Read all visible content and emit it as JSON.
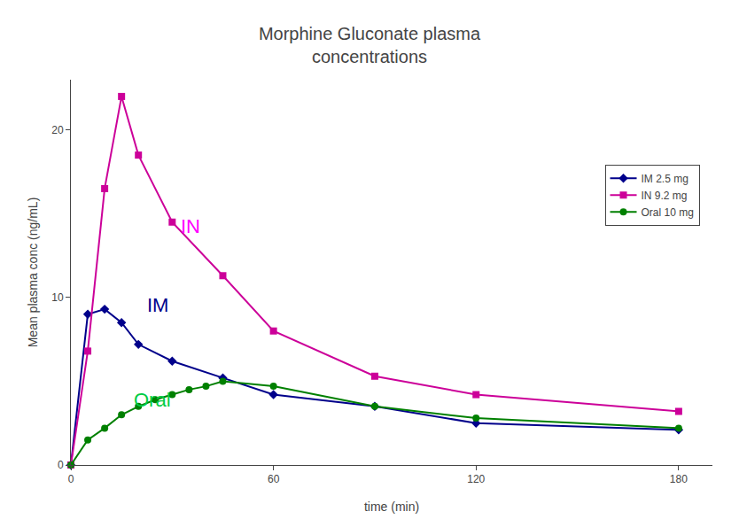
{
  "chart_data": {
    "type": "line",
    "title": "Morphine Gluconate plasma\nconcentrations",
    "x_label": "time (min)",
    "y_label": "Mean plasma conc (ng/mL)",
    "xlim": [
      0,
      190
    ],
    "ylim": [
      0,
      23
    ],
    "xticks": [
      0,
      60,
      120,
      180
    ],
    "yticks": [
      0,
      10,
      20
    ],
    "grid": false,
    "legend": "upper right",
    "series": [
      {
        "name": "IM 2.5 mg",
        "color": "#00008B",
        "marker": "diamond",
        "x": [
          0,
          5,
          10,
          15,
          20,
          30,
          45,
          60,
          90,
          120,
          180
        ],
        "values": [
          0,
          9.0,
          9.3,
          8.5,
          7.2,
          6.2,
          5.2,
          4.2,
          3.5,
          2.5,
          2.1
        ]
      },
      {
        "name": "IN 9.2 mg",
        "color": "#cc0099",
        "marker": "square",
        "x": [
          0,
          5,
          10,
          15,
          20,
          30,
          45,
          60,
          90,
          120,
          180
        ],
        "values": [
          0,
          6.8,
          16.5,
          22.0,
          18.5,
          14.5,
          11.3,
          8.0,
          5.3,
          4.2,
          3.2
        ]
      },
      {
        "name": "Oral 10 mg",
        "color": "#008000",
        "marker": "circle",
        "x": [
          0,
          5,
          10,
          15,
          20,
          25,
          30,
          35,
          40,
          45,
          60,
          90,
          120,
          180
        ],
        "values": [
          0,
          1.5,
          2.2,
          3.0,
          3.5,
          3.9,
          4.2,
          4.5,
          4.7,
          5.0,
          4.7,
          3.5,
          2.8,
          2.2
        ]
      }
    ],
    "annotations": [
      {
        "text": "IN",
        "x": 32,
        "y": 13.5,
        "color": "#ff00ff"
      },
      {
        "text": "IM",
        "x": 22,
        "y": 8.8,
        "color": "#00008B"
      },
      {
        "text": "Oral",
        "x": 18,
        "y": 3.1,
        "color": "#00cc44"
      }
    ]
  }
}
